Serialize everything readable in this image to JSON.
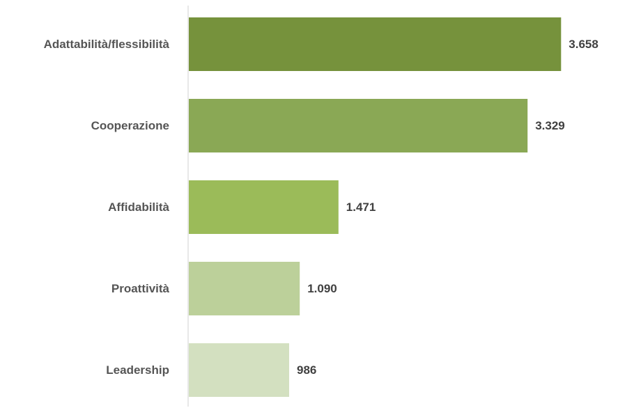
{
  "chart_data": {
    "type": "bar",
    "orientation": "horizontal",
    "categories": [
      "Adattabilità/flessibilità",
      "Cooperazione",
      "Affidabilità",
      "Proattività",
      "Leadership"
    ],
    "values": [
      3658,
      3329,
      1471,
      1090,
      986
    ],
    "value_labels": [
      "3.658",
      "3.329",
      "1.471",
      "1.090",
      "986"
    ],
    "bar_colors": [
      "#76923c",
      "#8aa855",
      "#9bbb59",
      "#bcd09a",
      "#d3e0c0"
    ],
    "axis_color": "#d9d9d9",
    "grid": false,
    "legend": "none",
    "xlim": [
      0,
      3800
    ]
  }
}
